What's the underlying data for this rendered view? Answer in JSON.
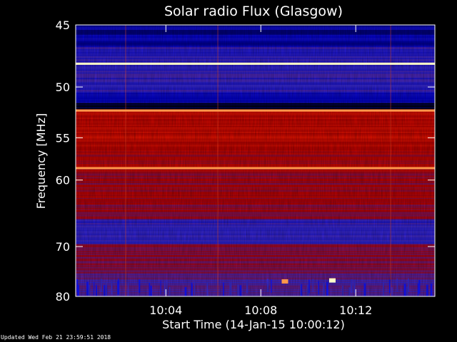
{
  "chart_data": {
    "type": "heatmap",
    "title": "Solar radio Flux (Glasgow)",
    "xlabel": "Start Time (14-Jan-15 10:00:12)",
    "ylabel": "Frequency [MHz]",
    "x_start": "10:00:12",
    "x_end": "10:15:20",
    "x_ticks": [
      "10:04",
      "10:08",
      "10:12"
    ],
    "y_ticks": [
      45,
      50,
      55,
      60,
      70,
      80
    ],
    "y_scale": "reciprocal",
    "ylim": [
      45,
      80
    ],
    "colormap": [
      "#000000",
      "#0000c8",
      "#3a2bd0",
      "#b40000",
      "#ff1e00",
      "#ff8c3c",
      "#ffffc8"
    ],
    "features": [
      {
        "kind": "continuous band",
        "frequency_mhz": 48.0,
        "level": "very high"
      },
      {
        "kind": "continuous band",
        "frequency_mhz": 52.2,
        "level": "high"
      },
      {
        "kind": "continuous band",
        "frequency_mhz": 58.5,
        "level": "high"
      },
      {
        "kind": "burst",
        "time": "10:11:00",
        "frequency_mhz": 76.5,
        "level": "very high"
      },
      {
        "kind": "burst",
        "time": "10:09:00",
        "frequency_mhz": 76.7,
        "level": "high"
      }
    ]
  },
  "footer": {
    "updated": "Updated Wed Feb 21 23:59:51 2018"
  }
}
